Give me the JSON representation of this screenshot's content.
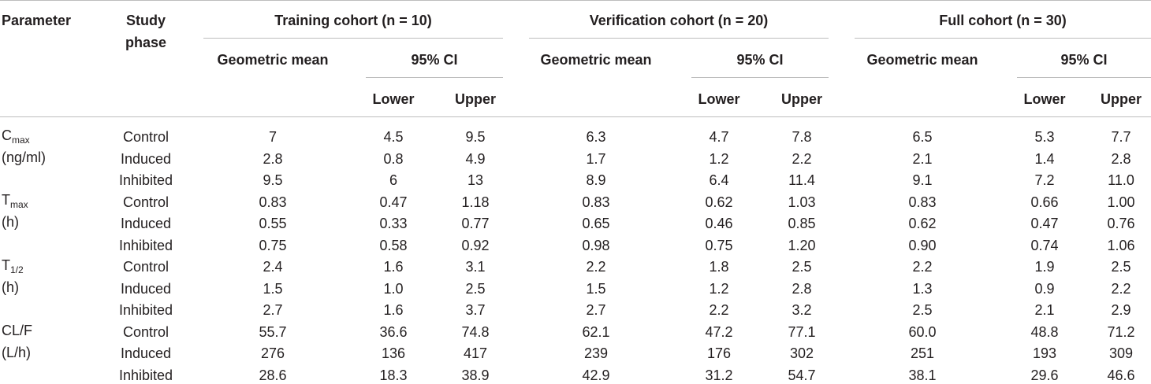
{
  "header": {
    "parameter": "Parameter",
    "study_phase_line1": "Study",
    "study_phase_line2": "phase",
    "geometric_mean": "Geometric mean",
    "ci95": "95% CI",
    "lower": "Lower",
    "upper": "Upper"
  },
  "cohorts": [
    {
      "label": "Training cohort (n = 10)"
    },
    {
      "label": "Verification cohort (n = 20)"
    },
    {
      "label": "Full cohort (n = 30)"
    }
  ],
  "params": [
    {
      "main": "C",
      "sub": "max",
      "unit": "(ng/ml)"
    },
    {
      "main": "T",
      "sub": "max",
      "unit": "(h)"
    },
    {
      "main": "T",
      "sub": "1/2",
      "unit": "(h)"
    },
    {
      "main": "CL/F",
      "sub": "",
      "unit": "(L/h)"
    }
  ],
  "rows": [
    {
      "phase": "Control",
      "values": [
        "7",
        "4.5",
        "9.5",
        "6.3",
        "4.7",
        "7.8",
        "6.5",
        "5.3",
        "7.7"
      ]
    },
    {
      "phase": "Induced",
      "values": [
        "2.8",
        "0.8",
        "4.9",
        "1.7",
        "1.2",
        "2.2",
        "2.1",
        "1.4",
        "2.8"
      ]
    },
    {
      "phase": "Inhibited",
      "values": [
        "9.5",
        "6",
        "13",
        "8.9",
        "6.4",
        "11.4",
        "9.1",
        "7.2",
        "11.0"
      ]
    },
    {
      "phase": "Control",
      "values": [
        "0.83",
        "0.47",
        "1.18",
        "0.83",
        "0.62",
        "1.03",
        "0.83",
        "0.66",
        "1.00"
      ]
    },
    {
      "phase": "Induced",
      "values": [
        "0.55",
        "0.33",
        "0.77",
        "0.65",
        "0.46",
        "0.85",
        "0.62",
        "0.47",
        "0.76"
      ]
    },
    {
      "phase": "Inhibited",
      "values": [
        "0.75",
        "0.58",
        "0.92",
        "0.98",
        "0.75",
        "1.20",
        "0.90",
        "0.74",
        "1.06"
      ]
    },
    {
      "phase": "Control",
      "values": [
        "2.4",
        "1.6",
        "3.1",
        "2.2",
        "1.8",
        "2.5",
        "2.2",
        "1.9",
        "2.5"
      ]
    },
    {
      "phase": "Induced",
      "values": [
        "1.5",
        "1.0",
        "2.5",
        "1.5",
        "1.2",
        "2.8",
        "1.3",
        "0.9",
        "2.2"
      ]
    },
    {
      "phase": "Inhibited",
      "values": [
        "2.7",
        "1.6",
        "3.7",
        "2.7",
        "2.2",
        "3.2",
        "2.5",
        "2.1",
        "2.9"
      ]
    },
    {
      "phase": "Control",
      "values": [
        "55.7",
        "36.6",
        "74.8",
        "62.1",
        "47.2",
        "77.1",
        "60.0",
        "48.8",
        "71.2"
      ]
    },
    {
      "phase": "Induced",
      "values": [
        "276",
        "136",
        "417",
        "239",
        "176",
        "302",
        "251",
        "193",
        "309"
      ]
    },
    {
      "phase": "Inhibited",
      "values": [
        "28.6",
        "18.3",
        "38.9",
        "42.9",
        "31.2",
        "54.7",
        "38.1",
        "29.6",
        "46.6"
      ]
    }
  ]
}
